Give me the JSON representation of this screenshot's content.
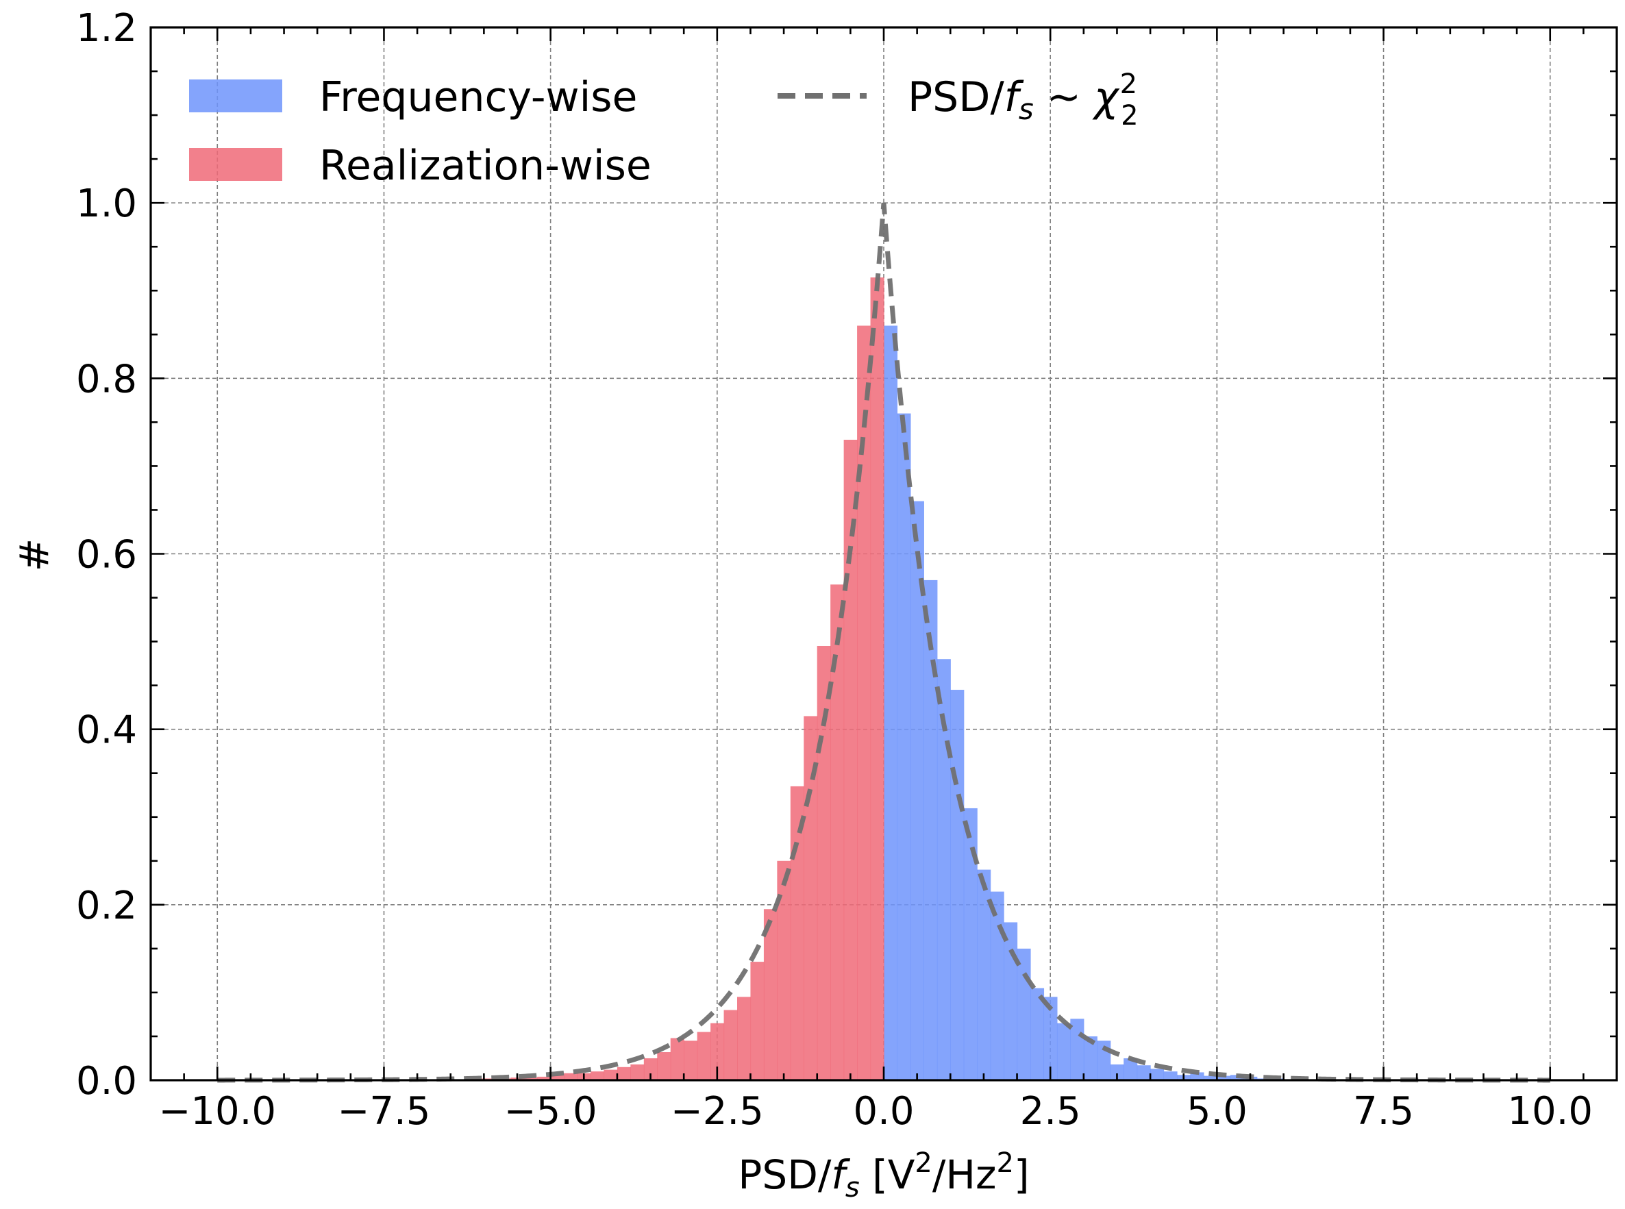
{
  "chart_data": {
    "type": "bar",
    "xlabel_parts": {
      "base": "PSD/",
      "f": "f",
      "sub": "s",
      "bracket_open": " [V",
      "sup1": "2",
      "mid": "/Hz",
      "sup2": "2",
      "bracket_close": "]"
    },
    "ylabel": "#",
    "xlim": [
      -11,
      11
    ],
    "ylim": [
      0,
      1.2
    ],
    "x_ticks": [
      -10.0,
      -7.5,
      -5.0,
      -2.5,
      0.0,
      2.5,
      5.0,
      7.5,
      10.0
    ],
    "x_tick_labels": [
      "−10.0",
      "−7.5",
      "−5.0",
      "−2.5",
      "0.0",
      "2.5",
      "5.0",
      "7.5",
      "10.0"
    ],
    "y_ticks": [
      0.0,
      0.2,
      0.4,
      0.6,
      0.8,
      1.0,
      1.2
    ],
    "y_tick_labels": [
      "0.0",
      "0.2",
      "0.4",
      "0.6",
      "0.8",
      "1.0",
      "1.2"
    ],
    "grid": true,
    "legend_position": "top-left",
    "bin_width": 0.2,
    "series": [
      {
        "name": "Frequency-wise",
        "color": "#6f94fb",
        "bin_starts": [
          0.0,
          0.2,
          0.4,
          0.6,
          0.8,
          1.0,
          1.2,
          1.4,
          1.6,
          1.8,
          2.0,
          2.2,
          2.4,
          2.6,
          2.8,
          3.0,
          3.2,
          3.4,
          3.6,
          3.8,
          4.0,
          4.2,
          4.4,
          4.6,
          4.8,
          5.0,
          5.2,
          5.4,
          5.6,
          5.8,
          6.0,
          6.2,
          6.4,
          6.6,
          6.8,
          7.0
        ],
        "values": [
          0.86,
          0.76,
          0.66,
          0.57,
          0.48,
          0.445,
          0.31,
          0.24,
          0.215,
          0.18,
          0.15,
          0.105,
          0.095,
          0.065,
          0.07,
          0.05,
          0.045,
          0.018,
          0.025,
          0.017,
          0.013,
          0.01,
          0.006,
          0.009,
          0.005,
          0.005,
          0.006,
          0.004,
          0.002,
          0.002,
          0.001,
          0.001,
          0.001,
          0.001,
          0.001,
          0.001
        ]
      },
      {
        "name": "Realization-wise",
        "color": "#f06a78",
        "bin_starts": [
          -0.2,
          -0.4,
          -0.6,
          -0.8,
          -1.0,
          -1.2,
          -1.4,
          -1.6,
          -1.8,
          -2.0,
          -2.2,
          -2.4,
          -2.6,
          -2.8,
          -3.0,
          -3.2,
          -3.4,
          -3.6,
          -3.8,
          -4.0,
          -4.2,
          -4.4,
          -4.6,
          -4.8,
          -5.0,
          -5.2,
          -5.4,
          -5.6,
          -5.8,
          -6.0,
          -6.2,
          -6.4,
          -6.6,
          -6.8,
          -7.0
        ],
        "values": [
          0.915,
          0.86,
          0.73,
          0.565,
          0.495,
          0.415,
          0.335,
          0.25,
          0.195,
          0.135,
          0.095,
          0.08,
          0.065,
          0.055,
          0.045,
          0.048,
          0.032,
          0.025,
          0.018,
          0.015,
          0.012,
          0.01,
          0.008,
          0.008,
          0.006,
          0.004,
          0.003,
          0.003,
          0.002,
          0.002,
          0.002,
          0.001,
          0.001,
          0.001,
          0.001
        ]
      },
      {
        "name_parts": {
          "base": "PSD/",
          "f": "f",
          "sub": "s",
          "mid": " ~ ",
          "chi": "χ",
          "sup": "2",
          "sub2": "2"
        },
        "type": "line",
        "style": "dashed",
        "color": "#707070",
        "function": "exp(-|x|)",
        "x_range": [
          -10,
          10
        ]
      }
    ]
  }
}
